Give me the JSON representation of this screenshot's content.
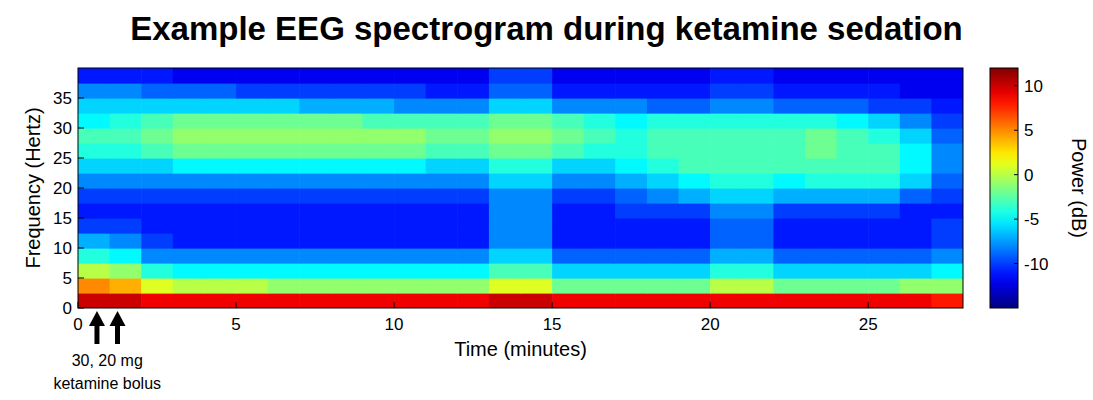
{
  "chart_data": {
    "type": "heatmap",
    "title": "Example EEG spectrogram during ketamine sedation",
    "x_label": "Time (minutes)",
    "y_label": "Frequency (Hertz)",
    "xlim": [
      0,
      28
    ],
    "xticks": [
      0,
      5,
      10,
      15,
      20,
      25
    ],
    "ylim": [
      0,
      40
    ],
    "yticks": [
      0,
      5,
      10,
      15,
      20,
      25,
      30,
      35
    ],
    "x": [
      0,
      1,
      2,
      3,
      4,
      5,
      6,
      7,
      8,
      9,
      10,
      11,
      12,
      13,
      14,
      15,
      16,
      17,
      18,
      19,
      20,
      21,
      22,
      23,
      24,
      25,
      26,
      27,
      28
    ],
    "y": [
      0,
      2.5,
      5,
      7.5,
      10,
      12.5,
      15,
      17.5,
      20,
      22.5,
      25,
      27.5,
      30,
      32.5,
      35,
      37.5,
      40
    ],
    "values": [
      [
        10,
        10,
        9,
        9,
        9,
        9,
        9,
        9,
        9,
        9,
        9,
        9,
        9,
        10,
        10,
        9,
        9,
        9,
        9,
        9,
        9,
        9,
        9,
        9,
        9,
        9,
        9,
        8
      ],
      [
        5,
        4,
        1,
        0,
        0,
        0,
        -1,
        -1,
        -1,
        -1,
        -1,
        -1,
        -1,
        1,
        1,
        -2,
        -2,
        -2,
        -2,
        -2,
        0,
        0,
        -2,
        -2,
        -2,
        -2,
        -1,
        -1
      ],
      [
        0,
        -1,
        -4,
        -5,
        -5,
        -5,
        -5,
        -5,
        -5,
        -5,
        -5,
        -5,
        -5,
        -3,
        -3,
        -6,
        -6,
        -6,
        -6,
        -6,
        -4,
        -4,
        -6,
        -6,
        -6,
        -6,
        -6,
        -5
      ],
      [
        -4,
        -5,
        -8,
        -8,
        -8,
        -8,
        -8,
        -8,
        -8,
        -8,
        -8,
        -8,
        -8,
        -6,
        -6,
        -9,
        -9,
        -9,
        -9,
        -9,
        -7,
        -7,
        -9,
        -9,
        -9,
        -9,
        -9,
        -8
      ],
      [
        -7,
        -8,
        -10,
        -11,
        -11,
        -11,
        -11,
        -11,
        -11,
        -11,
        -11,
        -11,
        -11,
        -8,
        -8,
        -11,
        -11,
        -11,
        -11,
        -11,
        -9,
        -9,
        -11,
        -11,
        -11,
        -11,
        -11,
        -10
      ],
      [
        -10,
        -10,
        -11,
        -11,
        -11,
        -11,
        -11,
        -11,
        -11,
        -11,
        -11,
        -11,
        -11,
        -8,
        -8,
        -11,
        -11,
        -11,
        -11,
        -11,
        -9,
        -9,
        -11,
        -11,
        -11,
        -11,
        -11,
        -10
      ],
      [
        -11,
        -11,
        -11,
        -11,
        -11,
        -11,
        -11,
        -11,
        -11,
        -11,
        -11,
        -11,
        -11,
        -8,
        -8,
        -11,
        -11,
        -10,
        -10,
        -10,
        -8,
        -8,
        -10,
        -10,
        -10,
        -10,
        -11,
        -11
      ],
      [
        -10,
        -10,
        -10,
        -10,
        -10,
        -10,
        -10,
        -10,
        -10,
        -10,
        -10,
        -10,
        -10,
        -8,
        -8,
        -10,
        -10,
        -9,
        -8,
        -7,
        -6,
        -6,
        -7,
        -7,
        -7,
        -7,
        -9,
        -10
      ],
      [
        -8,
        -8,
        -8,
        -8,
        -8,
        -8,
        -8,
        -8,
        -8,
        -8,
        -8,
        -8,
        -8,
        -6,
        -6,
        -8,
        -8,
        -7,
        -6,
        -5,
        -4,
        -4,
        -5,
        -4,
        -4,
        -4,
        -6,
        -9
      ],
      [
        -6,
        -6,
        -6,
        -5,
        -5,
        -5,
        -5,
        -5,
        -5,
        -5,
        -5,
        -6,
        -6,
        -4,
        -4,
        -6,
        -6,
        -5,
        -4,
        -3,
        -3,
        -3,
        -3,
        -3,
        -3,
        -3,
        -5,
        -8
      ],
      [
        -4,
        -4,
        -3,
        -2,
        -2,
        -2,
        -2,
        -2,
        -2,
        -2,
        -2,
        -3,
        -3,
        -2,
        -2,
        -3,
        -4,
        -4,
        -3,
        -3,
        -3,
        -3,
        -3,
        -2,
        -3,
        -3,
        -5,
        -8
      ],
      [
        -3,
        -3,
        -2,
        -1,
        -1,
        -1,
        -1,
        -1,
        -1,
        -1,
        -1,
        -2,
        -2,
        -1,
        -1,
        -2,
        -3,
        -4,
        -3,
        -3,
        -3,
        -3,
        -3,
        -2,
        -3,
        -4,
        -6,
        -9
      ],
      [
        -5,
        -4,
        -3,
        -2,
        -2,
        -2,
        -2,
        -2,
        -2,
        -3,
        -3,
        -3,
        -3,
        -2,
        -2,
        -3,
        -4,
        -5,
        -4,
        -4,
        -4,
        -4,
        -4,
        -4,
        -5,
        -6,
        -8,
        -10
      ],
      [
        -6,
        -6,
        -6,
        -6,
        -6,
        -6,
        -6,
        -7,
        -7,
        -7,
        -8,
        -8,
        -8,
        -6,
        -6,
        -8,
        -8,
        -8,
        -9,
        -9,
        -8,
        -8,
        -9,
        -9,
        -9,
        -10,
        -10,
        -11
      ],
      [
        -8,
        -8,
        -9,
        -9,
        -9,
        -10,
        -10,
        -10,
        -10,
        -10,
        -10,
        -11,
        -11,
        -9,
        -9,
        -11,
        -11,
        -11,
        -11,
        -11,
        -10,
        -10,
        -11,
        -11,
        -11,
        -11,
        -12,
        -12
      ],
      [
        -11,
        -11,
        -11,
        -12,
        -12,
        -12,
        -12,
        -12,
        -12,
        -12,
        -12,
        -12,
        -12,
        -10,
        -10,
        -12,
        -12,
        -12,
        -12,
        -12,
        -11,
        -11,
        -12,
        -12,
        -12,
        -12,
        -12,
        -12
      ]
    ],
    "colorbar": {
      "label": "Power (dB)",
      "range": [
        -15,
        12
      ],
      "ticks": [
        -10,
        -5,
        0,
        5,
        10
      ]
    },
    "annotation": {
      "lines": [
        "30, 20 mg",
        "ketamine bolus"
      ],
      "x": [
        0.6,
        1.25
      ]
    }
  }
}
